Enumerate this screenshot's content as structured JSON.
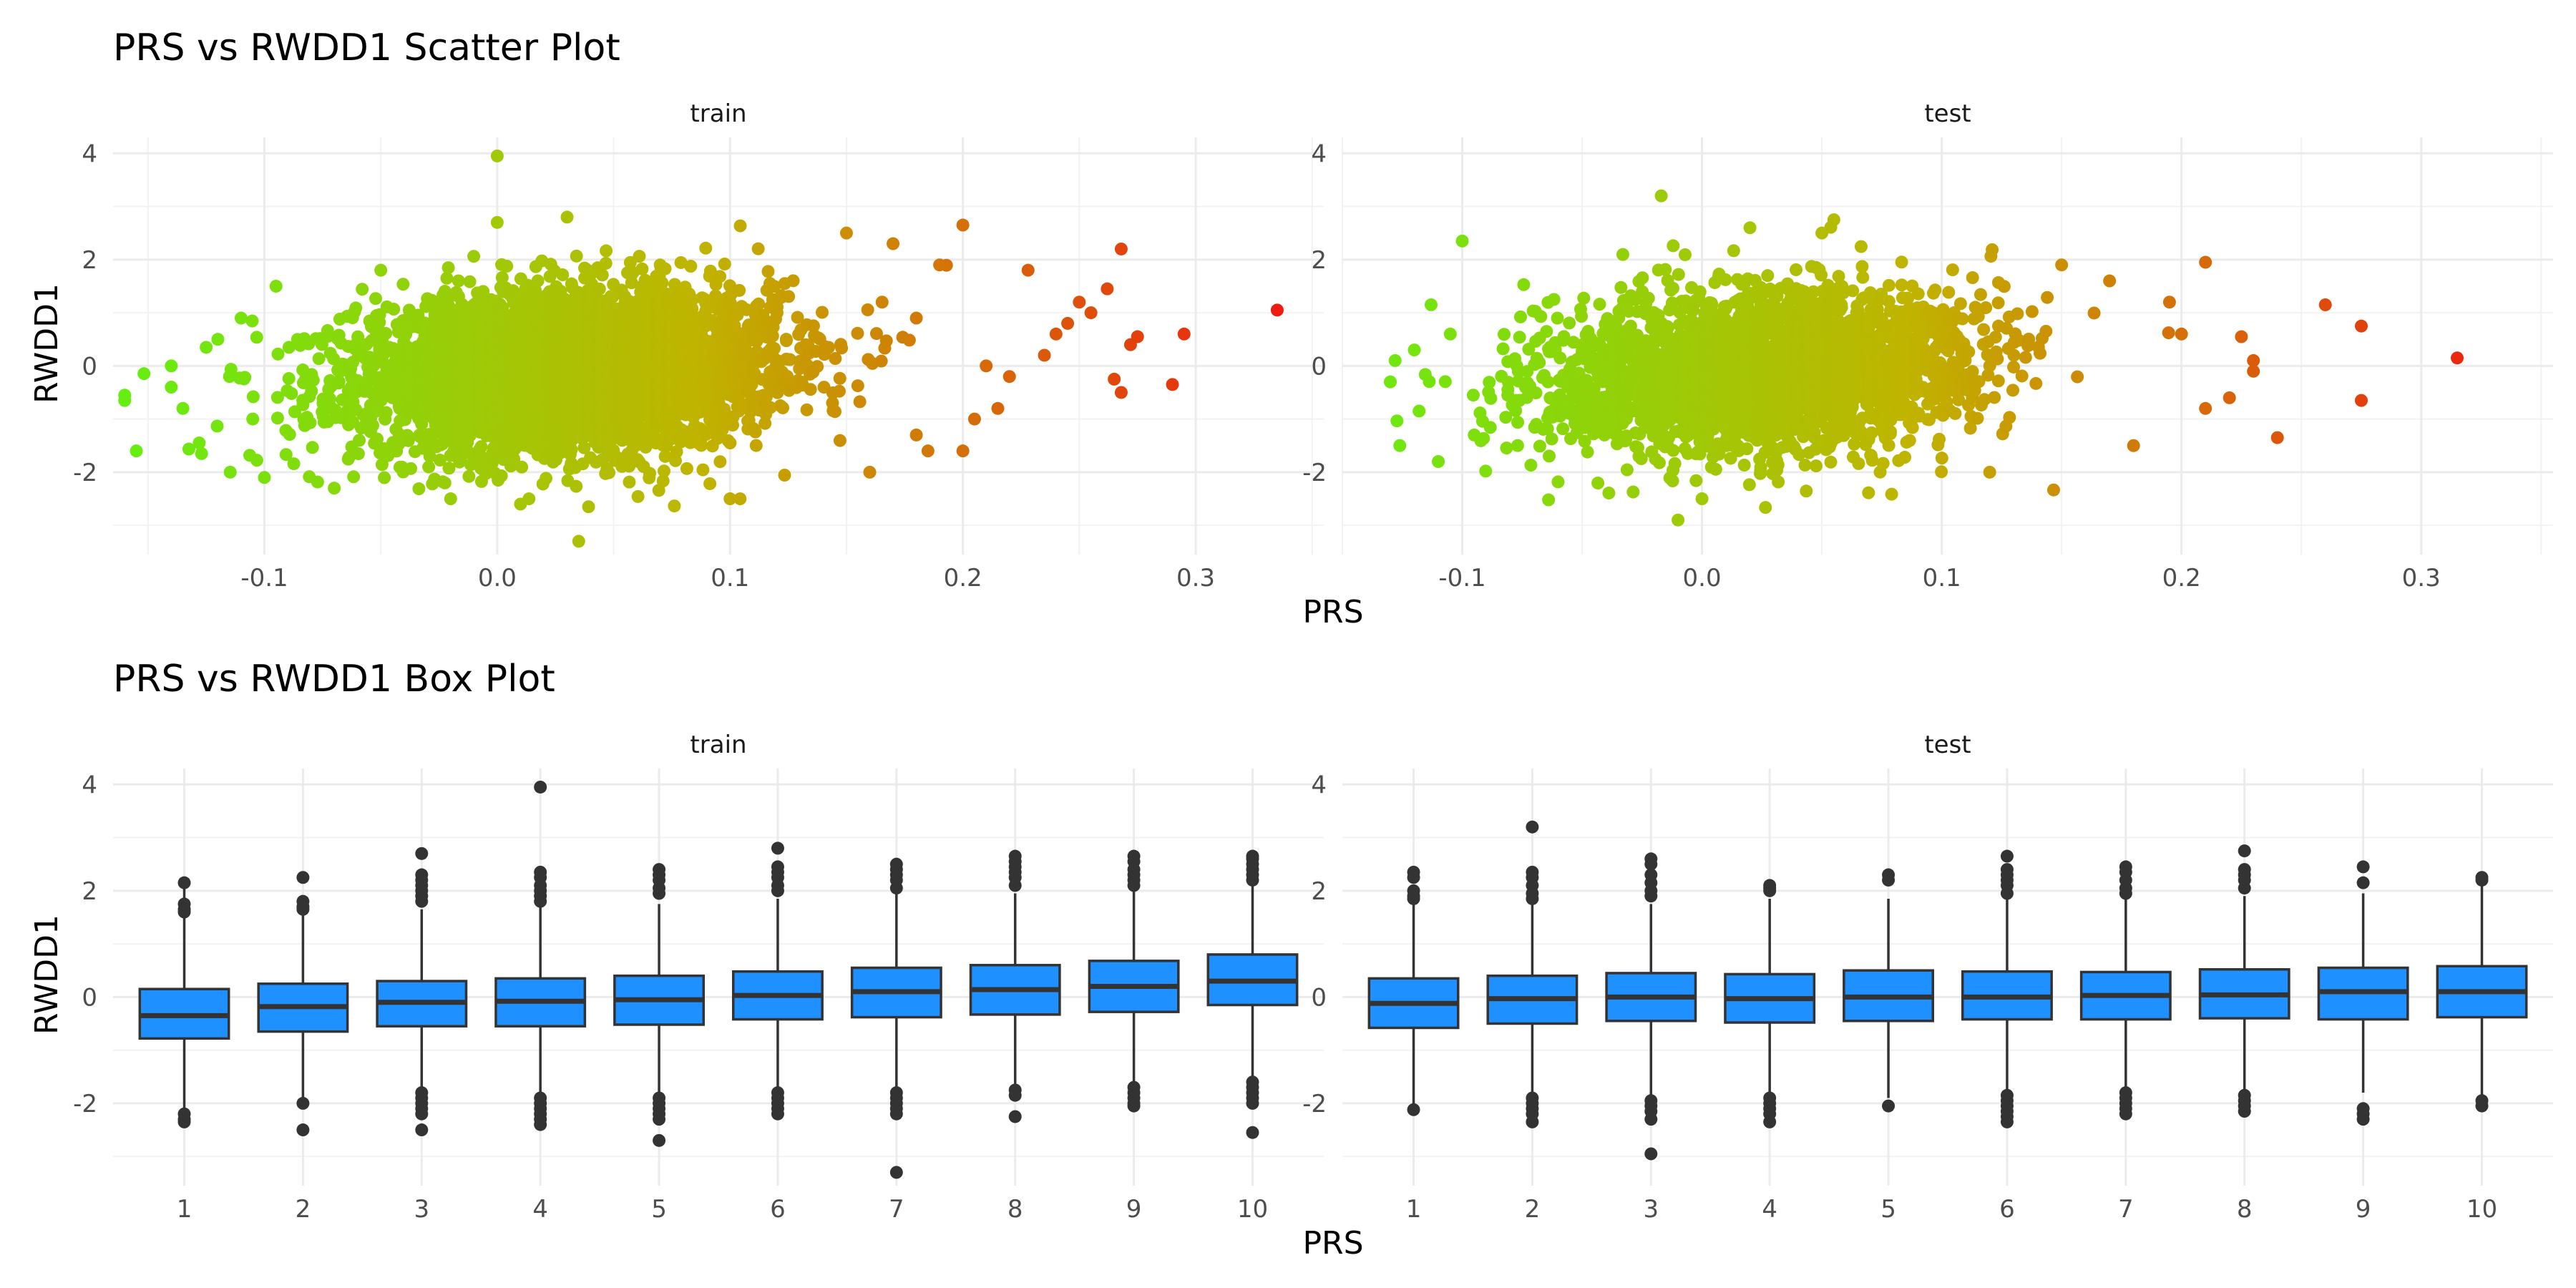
{
  "chart_data": [
    {
      "type": "scatter",
      "title": "PRS vs RWDD1 Scatter Plot",
      "xlabel": "PRS",
      "ylabel": "RWDD1",
      "grid": true,
      "legend": "none",
      "color_scale": {
        "low": "#66ee11",
        "mid": "#c0b400",
        "high": "#ee1c10"
      },
      "facets": [
        {
          "label": "train",
          "xlim": [
            -0.165,
            0.355
          ],
          "ylim": [
            -3.55,
            4.3
          ],
          "x_ticks": [
            -0.1,
            0.0,
            0.1,
            0.2,
            0.3
          ],
          "x_tick_labels": [
            "-0.1",
            "0.0",
            "0.1",
            "0.2",
            "0.3"
          ],
          "y_ticks": [
            -2,
            0,
            2,
            4
          ],
          "y_tick_labels": [
            "-2",
            "0",
            "2",
            "4"
          ],
          "bulk": {
            "x_mean": 0.03,
            "x_sd": 0.045,
            "y_mean": -0.1,
            "y_sd": 0.75
          },
          "points": [
            [
              0.0,
              3.95
            ],
            [
              0.03,
              2.8
            ],
            [
              0.0,
              2.7
            ],
            [
              0.035,
              -3.3
            ],
            [
              0.1,
              -2.5
            ],
            [
              0.2,
              2.65
            ],
            [
              0.335,
              1.05
            ],
            [
              0.295,
              0.6
            ],
            [
              0.272,
              0.4
            ],
            [
              0.275,
              0.55
            ],
            [
              0.268,
              -0.5
            ],
            [
              0.265,
              -0.25
            ],
            [
              0.29,
              -0.35
            ],
            [
              0.268,
              2.2
            ],
            [
              0.262,
              1.45
            ],
            [
              0.25,
              1.2
            ],
            [
              0.245,
              0.8
            ],
            [
              0.255,
              1.0
            ],
            [
              0.24,
              0.6
            ],
            [
              0.235,
              0.2
            ],
            [
              0.228,
              1.8
            ],
            [
              0.22,
              -0.2
            ],
            [
              0.215,
              -0.8
            ],
            [
              0.21,
              0.0
            ],
            [
              0.205,
              -1.0
            ],
            [
              0.2,
              -1.6
            ],
            [
              0.185,
              -1.6
            ],
            [
              0.18,
              0.9
            ],
            [
              -0.16,
              -0.55
            ],
            [
              -0.16,
              -0.65
            ],
            [
              -0.155,
              -1.6
            ],
            [
              -0.14,
              -0.4
            ],
            [
              -0.14,
              0.0
            ],
            [
              -0.135,
              -0.8
            ],
            [
              -0.128,
              -1.45
            ],
            [
              -0.127,
              -1.65
            ],
            [
              -0.125,
              0.35
            ],
            [
              -0.12,
              0.5
            ],
            [
              -0.115,
              -0.2
            ],
            [
              -0.11,
              0.9
            ],
            [
              -0.105,
              -1.0
            ],
            [
              -0.1,
              -2.1
            ],
            [
              -0.095,
              1.5
            ],
            [
              -0.07,
              -2.3
            ],
            [
              -0.05,
              1.8
            ],
            [
              -0.02,
              -2.5
            ],
            [
              0.01,
              -2.6
            ],
            [
              0.15,
              2.5
            ],
            [
              0.17,
              2.3
            ],
            [
              0.19,
              1.9
            ],
            [
              0.18,
              -1.3
            ],
            [
              0.16,
              -2.0
            ]
          ]
        },
        {
          "label": "test",
          "xlim": [
            -0.15,
            0.355
          ],
          "ylim": [
            -3.55,
            4.3
          ],
          "x_ticks": [
            -0.1,
            0.0,
            0.1,
            0.2,
            0.3
          ],
          "x_tick_labels": [
            "-0.1",
            "0.0",
            "0.1",
            "0.2",
            "0.3"
          ],
          "y_ticks": [
            -2,
            0,
            2,
            4
          ],
          "y_tick_labels": [
            "-2",
            "0",
            "2",
            "4"
          ],
          "bulk": {
            "x_mean": 0.025,
            "x_sd": 0.045,
            "y_mean": -0.1,
            "y_sd": 0.75
          },
          "points": [
            [
              -0.017,
              3.2
            ],
            [
              -0.01,
              -2.9
            ],
            [
              0.315,
              0.15
            ],
            [
              0.275,
              0.75
            ],
            [
              0.275,
              -0.65
            ],
            [
              0.26,
              1.15
            ],
            [
              0.24,
              -1.35
            ],
            [
              0.23,
              -0.1
            ],
            [
              0.23,
              0.1
            ],
            [
              0.21,
              1.95
            ],
            [
              0.22,
              -0.6
            ],
            [
              0.2,
              0.6
            ],
            [
              0.21,
              -0.8
            ],
            [
              0.195,
              1.2
            ],
            [
              0.225,
              0.55
            ],
            [
              -0.13,
              -0.3
            ],
            [
              -0.128,
              0.1
            ],
            [
              -0.12,
              0.3
            ],
            [
              -0.118,
              -0.85
            ],
            [
              -0.113,
              1.15
            ],
            [
              -0.11,
              -1.8
            ],
            [
              -0.105,
              0.6
            ],
            [
              -0.1,
              2.35
            ],
            [
              -0.095,
              -1.3
            ],
            [
              0.055,
              2.75
            ],
            [
              0.05,
              2.5
            ],
            [
              0.02,
              2.6
            ],
            [
              0.0,
              -2.5
            ],
            [
              0.12,
              -2.0
            ],
            [
              0.15,
              1.9
            ],
            [
              0.17,
              1.6
            ],
            [
              0.18,
              -1.5
            ]
          ]
        }
      ]
    },
    {
      "type": "box",
      "title": "PRS vs RWDD1 Box Plot",
      "xlabel": "PRS",
      "ylabel": "RWDD1",
      "grid": true,
      "legend": "none",
      "box_color": "#1e90ff",
      "line_color": "#333333",
      "facets": [
        {
          "label": "train",
          "ylim": [
            -3.55,
            4.3
          ],
          "y_ticks": [
            -2,
            0,
            2,
            4
          ],
          "y_tick_labels": [
            "-2",
            "0",
            "2",
            "4"
          ],
          "categories": [
            "1",
            "2",
            "3",
            "4",
            "5",
            "6",
            "7",
            "8",
            "9",
            "10"
          ],
          "boxes": [
            {
              "q1": -0.78,
              "median": -0.35,
              "q3": 0.15,
              "whisker_low": -2.1,
              "whisker_high": 2.1,
              "outliers": [
                2.15,
                1.75,
                1.65,
                1.6,
                -2.2,
                -2.3,
                -2.35
              ]
            },
            {
              "q1": -0.65,
              "median": -0.18,
              "q3": 0.25,
              "whisker_low": -1.95,
              "whisker_high": 1.55,
              "outliers": [
                2.25,
                1.8,
                1.7,
                1.65,
                -2.0,
                -2.5
              ]
            },
            {
              "q1": -0.55,
              "median": -0.1,
              "q3": 0.3,
              "whisker_low": -1.7,
              "whisker_high": 1.65,
              "outliers": [
                2.7,
                2.3,
                2.2,
                2.1,
                2.0,
                1.9,
                1.8,
                -1.8,
                -1.9,
                -2.0,
                -2.1,
                -2.2,
                -2.5
              ]
            },
            {
              "q1": -0.55,
              "median": -0.08,
              "q3": 0.35,
              "whisker_low": -1.8,
              "whisker_high": 1.7,
              "outliers": [
                3.95,
                2.35,
                2.25,
                2.1,
                2.0,
                1.9,
                1.8,
                -1.9,
                -2.0,
                -2.1,
                -2.2,
                -2.3,
                -2.4
              ]
            },
            {
              "q1": -0.52,
              "median": -0.05,
              "q3": 0.4,
              "whisker_low": -1.8,
              "whisker_high": 1.75,
              "outliers": [
                2.4,
                2.3,
                2.2,
                2.05,
                1.95,
                -1.9,
                -2.0,
                -2.1,
                -2.2,
                -2.3,
                -2.7
              ]
            },
            {
              "q1": -0.42,
              "median": 0.03,
              "q3": 0.48,
              "whisker_low": -1.75,
              "whisker_high": 1.85,
              "outliers": [
                2.8,
                2.45,
                2.35,
                2.25,
                2.1,
                2.0,
                -1.8,
                -1.9,
                -2.0,
                -2.1,
                -2.2
              ]
            },
            {
              "q1": -0.38,
              "median": 0.1,
              "q3": 0.55,
              "whisker_low": -1.7,
              "whisker_high": 1.95,
              "outliers": [
                2.5,
                2.4,
                2.3,
                2.2,
                2.05,
                -1.8,
                -1.9,
                -2.0,
                -2.1,
                -2.2,
                -3.3
              ]
            },
            {
              "q1": -0.33,
              "median": 0.14,
              "q3": 0.6,
              "whisker_low": -1.65,
              "whisker_high": 1.95,
              "outliers": [
                2.65,
                2.55,
                2.45,
                2.35,
                2.25,
                2.1,
                -1.75,
                -1.85,
                -2.25
              ]
            },
            {
              "q1": -0.28,
              "median": 0.2,
              "q3": 0.68,
              "whisker_low": -1.6,
              "whisker_high": 2.0,
              "outliers": [
                2.65,
                2.55,
                2.4,
                2.3,
                2.2,
                2.1,
                -1.7,
                -1.8,
                -1.9,
                -2.0,
                -2.05
              ]
            },
            {
              "q1": -0.15,
              "median": 0.3,
              "q3": 0.8,
              "whisker_low": -1.5,
              "whisker_high": 2.1,
              "outliers": [
                2.65,
                2.6,
                2.5,
                2.4,
                2.3,
                2.2,
                -1.6,
                -1.7,
                -1.8,
                -1.9,
                -2.0,
                -2.55
              ]
            }
          ]
        },
        {
          "label": "test",
          "ylim": [
            -3.55,
            4.3
          ],
          "y_ticks": [
            -2,
            0,
            2,
            4
          ],
          "y_tick_labels": [
            "-2",
            "0",
            "2",
            "4"
          ],
          "categories": [
            "1",
            "2",
            "3",
            "4",
            "5",
            "6",
            "7",
            "8",
            "9",
            "10"
          ],
          "boxes": [
            {
              "q1": -0.58,
              "median": -0.12,
              "q3": 0.35,
              "whisker_low": -2.05,
              "whisker_high": 1.75,
              "outliers": [
                2.35,
                2.25,
                2.0,
                1.9,
                1.85,
                -2.12
              ]
            },
            {
              "q1": -0.5,
              "median": -0.03,
              "q3": 0.4,
              "whisker_low": -1.8,
              "whisker_high": 1.75,
              "outliers": [
                3.2,
                2.35,
                2.25,
                2.1,
                1.95,
                1.85,
                -1.9,
                -2.0,
                -2.1,
                -2.2,
                -2.35
              ]
            },
            {
              "q1": -0.45,
              "median": 0.0,
              "q3": 0.45,
              "whisker_low": -1.85,
              "whisker_high": 1.75,
              "outliers": [
                2.6,
                2.5,
                2.3,
                2.15,
                2.0,
                1.9,
                -1.95,
                -2.05,
                -2.15,
                -2.3,
                -2.95
              ]
            },
            {
              "q1": -0.48,
              "median": -0.03,
              "q3": 0.43,
              "whisker_low": -1.8,
              "whisker_high": 1.85,
              "outliers": [
                2.1,
                2.05,
                2.0,
                -1.9,
                -2.0,
                -2.1,
                -2.2,
                -2.35
              ]
            },
            {
              "q1": -0.45,
              "median": 0.0,
              "q3": 0.5,
              "whisker_low": -1.9,
              "whisker_high": 1.85,
              "outliers": [
                2.3,
                2.2,
                -2.05
              ]
            },
            {
              "q1": -0.42,
              "median": 0.0,
              "q3": 0.48,
              "whisker_low": -1.8,
              "whisker_high": 1.85,
              "outliers": [
                2.65,
                2.4,
                2.3,
                2.2,
                2.1,
                1.95,
                -1.85,
                -1.95,
                -2.05,
                -2.15,
                -2.25,
                -2.35
              ]
            },
            {
              "q1": -0.42,
              "median": 0.03,
              "q3": 0.47,
              "whisker_low": -1.75,
              "whisker_high": 1.85,
              "outliers": [
                2.45,
                2.35,
                2.2,
                2.05,
                1.95,
                -1.8,
                -1.9,
                -2.0,
                -2.1,
                -2.2
              ]
            },
            {
              "q1": -0.4,
              "median": 0.04,
              "q3": 0.52,
              "whisker_low": -1.75,
              "whisker_high": 1.9,
              "outliers": [
                2.75,
                2.4,
                2.3,
                2.2,
                2.05,
                -1.85,
                -1.95,
                -2.05,
                -2.15
              ]
            },
            {
              "q1": -0.42,
              "median": 0.1,
              "q3": 0.55,
              "whisker_low": -1.8,
              "whisker_high": 1.95,
              "outliers": [
                2.45,
                2.15,
                -2.1,
                -2.2,
                -2.3
              ]
            },
            {
              "q1": -0.38,
              "median": 0.1,
              "q3": 0.58,
              "whisker_low": -1.85,
              "whisker_high": 2.1,
              "outliers": [
                2.25,
                2.2,
                -1.95,
                -2.05
              ]
            }
          ]
        }
      ]
    }
  ]
}
